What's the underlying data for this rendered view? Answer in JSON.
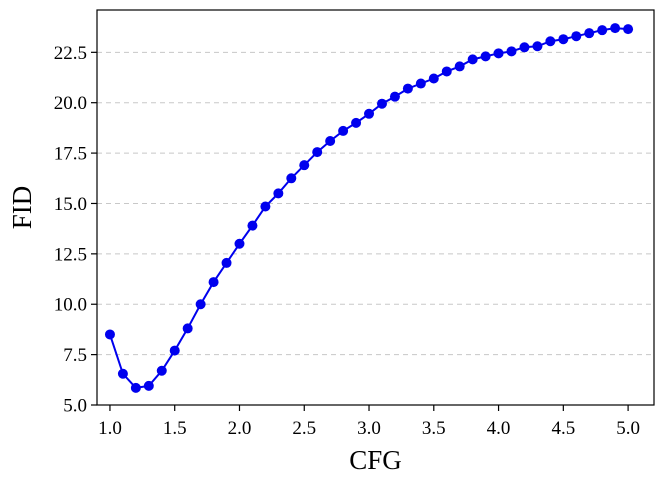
{
  "chart_data": {
    "type": "line",
    "title": "",
    "xlabel": "CFG",
    "ylabel": "FID",
    "xlim": [
      0.9,
      5.2
    ],
    "ylim": [
      5.0,
      24.6
    ],
    "xticks": [
      1.0,
      1.5,
      2.0,
      2.5,
      3.0,
      3.5,
      4.0,
      4.5,
      5.0
    ],
    "xtick_labels": [
      "1.0",
      "1.5",
      "2.0",
      "2.5",
      "3.0",
      "3.5",
      "4.0",
      "4.5",
      "5.0"
    ],
    "yticks": [
      5.0,
      7.5,
      10.0,
      12.5,
      15.0,
      17.5,
      20.0,
      22.5
    ],
    "ytick_labels": [
      "5.0",
      "7.5",
      "10.0",
      "12.5",
      "15.0",
      "17.5",
      "20.0",
      "22.5"
    ],
    "grid": "y-dashed",
    "series": [
      {
        "color": "#0000ee",
        "marker": "circle",
        "x": [
          1.0,
          1.1,
          1.2,
          1.3,
          1.4,
          1.5,
          1.6,
          1.7,
          1.8,
          1.9,
          2.0,
          2.1,
          2.2,
          2.3,
          2.4,
          2.5,
          2.6,
          2.7,
          2.8,
          2.9,
          3.0,
          3.1,
          3.2,
          3.3,
          3.4,
          3.5,
          3.6,
          3.7,
          3.8,
          3.9,
          4.0,
          4.1,
          4.2,
          4.3,
          4.4,
          4.5,
          4.6,
          4.7,
          4.8,
          4.9,
          5.0
        ],
        "y": [
          8.5,
          6.55,
          5.85,
          5.95,
          6.7,
          7.7,
          8.8,
          10.0,
          11.1,
          12.05,
          13.0,
          13.9,
          14.85,
          15.5,
          16.25,
          16.9,
          17.55,
          18.1,
          18.6,
          19.0,
          19.45,
          19.95,
          20.3,
          20.7,
          20.95,
          21.2,
          21.55,
          21.8,
          22.15,
          22.3,
          22.45,
          22.55,
          22.75,
          22.8,
          23.05,
          23.15,
          23.3,
          23.45,
          23.6,
          23.7,
          23.65
        ]
      }
    ]
  }
}
